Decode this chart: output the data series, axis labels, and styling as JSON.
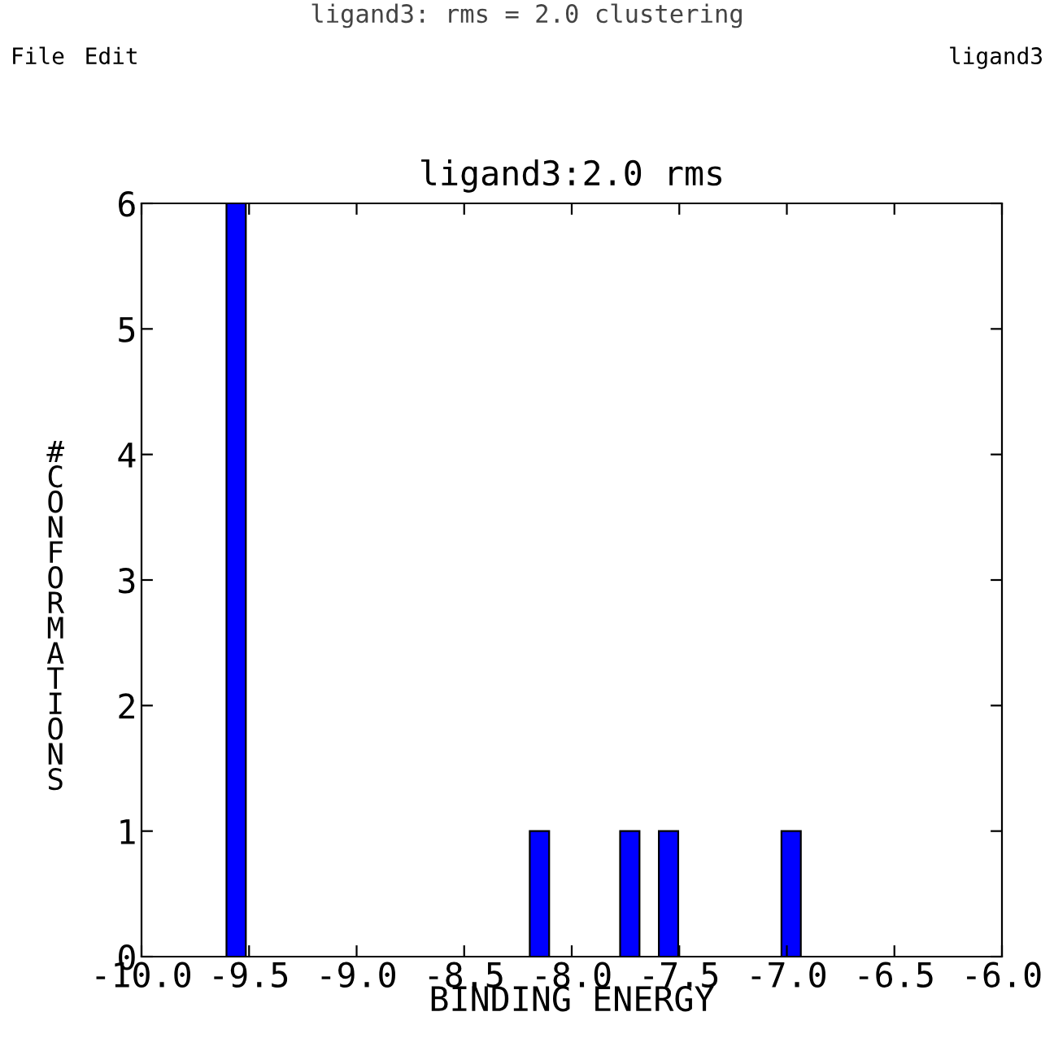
{
  "chart_data": {
    "type": "bar",
    "title": "ligand3:2.0 rms",
    "xlabel": "BINDING ENERGY",
    "ylabel": "#CONFORMATIONS",
    "x": [
      -9.56,
      -8.15,
      -7.73,
      -7.55,
      -6.98
    ],
    "values": [
      6,
      1,
      1,
      1,
      1
    ],
    "color": "#0000ff",
    "xlim": [
      -10.0,
      -6.0
    ],
    "xticks": [
      {
        "value": -10.0,
        "label": "-10.0"
      },
      {
        "value": -9.5,
        "label": "-9.5"
      },
      {
        "value": -9.0,
        "label": "-9.0"
      },
      {
        "value": -8.5,
        "label": "-8.5"
      },
      {
        "value": -8.0,
        "label": "-8.0"
      },
      {
        "value": -7.5,
        "label": "-7.5"
      },
      {
        "value": -7.0,
        "label": "-7.0"
      },
      {
        "value": -6.5,
        "label": "-6.5"
      },
      {
        "value": -6.0,
        "label": "-6.0"
      }
    ],
    "ylim": [
      0,
      6
    ],
    "yticks": [
      0,
      1,
      2,
      3,
      4,
      5,
      6
    ],
    "grid": false,
    "legend": false,
    "annotations": [
      "ligand3: rms = 2.0 clustering",
      "File",
      "Edit",
      "ligand3"
    ]
  }
}
